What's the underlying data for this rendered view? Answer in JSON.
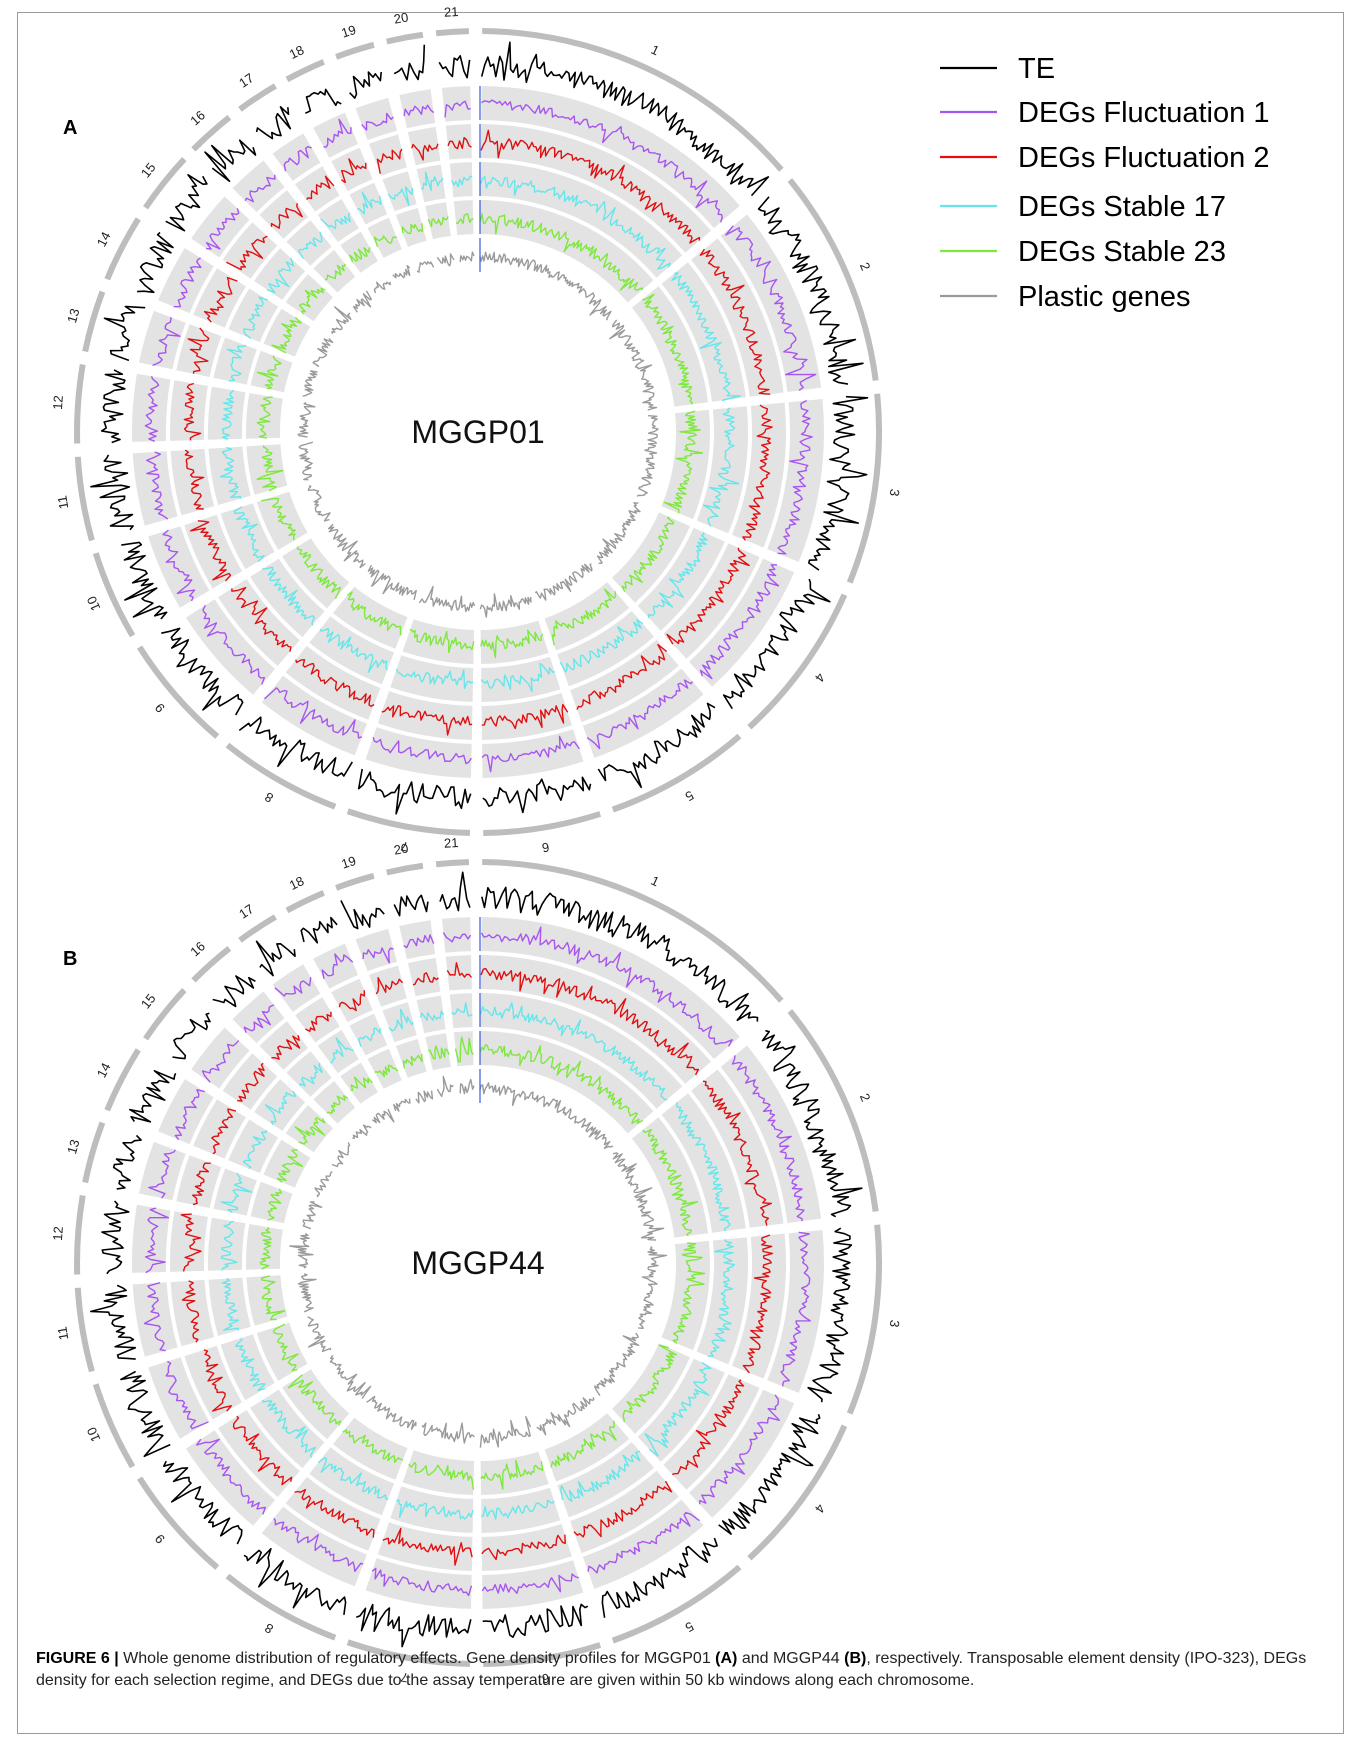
{
  "figure": {
    "legend": [
      {
        "label": "TE",
        "color": "#000000"
      },
      {
        "label": "DEGs Fluctuation 1",
        "color": "#a855f0"
      },
      {
        "label": "DEGs Fluctuation 2",
        "color": "#e01010"
      },
      {
        "label": "DEGs Stable 17",
        "color": "#66e6ea"
      },
      {
        "label": "DEGs Stable 23",
        "color": "#7ee83f"
      },
      {
        "label": "Plastic genes",
        "color": "#9a9a9a"
      }
    ],
    "chromosome_labels": [
      "1",
      "2",
      "3",
      "4",
      "5",
      "6",
      "7",
      "8",
      "9",
      "10",
      "11",
      "12",
      "13",
      "14",
      "15",
      "16",
      "17",
      "18",
      "19",
      "20",
      "21"
    ],
    "panels": [
      {
        "letter": "A",
        "title": "MGGP01"
      },
      {
        "letter": "B",
        "title": "MGGP44"
      }
    ],
    "caption": {
      "prefix": "FIGURE 6 |",
      "part1": " Whole genome distribution of regulatory effects. Gene density profiles for MGGP01 ",
      "ref_a": "(A)",
      "part2": " and MGGP44 ",
      "ref_b": "(B)",
      "part3": ", respectively. Transposable element density (IPO-323), DEGs density for each selection regime, and DEGs due to the assay temperature are given within 50 kb windows along each chromosome."
    }
  }
}
